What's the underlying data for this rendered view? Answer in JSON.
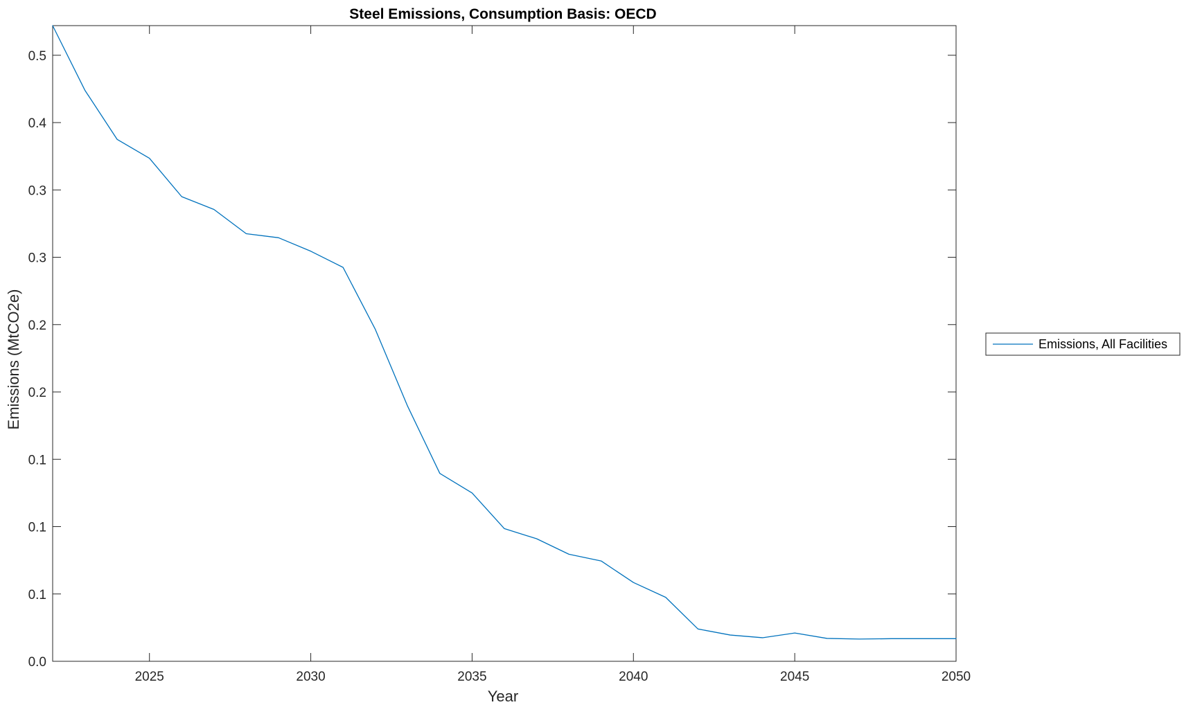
{
  "chart_data": {
    "type": "line",
    "title": "Steel Emissions, Consumption Basis: OECD",
    "xlabel": "Year",
    "ylabel": "Emissions (MtCO2e)",
    "xlim": [
      2022,
      2050
    ],
    "ylim": [
      0,
      0.472
    ],
    "grid": false,
    "legend_position": "outside-right",
    "x_ticks": [
      2025,
      2030,
      2035,
      2040,
      2045,
      2050
    ],
    "y_ticks": [
      {
        "value": 0.0,
        "label": "0.0"
      },
      {
        "value": 0.05,
        "label": "0.1"
      },
      {
        "value": 0.1,
        "label": "0.1"
      },
      {
        "value": 0.15,
        "label": "0.1"
      },
      {
        "value": 0.2,
        "label": "0.2"
      },
      {
        "value": 0.25,
        "label": "0.2"
      },
      {
        "value": 0.3,
        "label": "0.3"
      },
      {
        "value": 0.35,
        "label": "0.3"
      },
      {
        "value": 0.4,
        "label": "0.4"
      },
      {
        "value": 0.45,
        "label": "0.5"
      }
    ],
    "series": [
      {
        "name": "Emissions, All Facilities",
        "color": "#0072BD",
        "x": [
          2022,
          2023,
          2024,
          2025,
          2026,
          2027,
          2028,
          2029,
          2030,
          2031,
          2032,
          2033,
          2034,
          2035,
          2036,
          2037,
          2038,
          2039,
          2040,
          2041,
          2042,
          2043,
          2044,
          2045,
          2046,
          2047,
          2048,
          2049,
          2050
        ],
        "values": [
          0.472,
          0.424,
          0.3875,
          0.3735,
          0.345,
          0.3355,
          0.3175,
          0.3145,
          0.3045,
          0.2925,
          0.2465,
          0.1895,
          0.1395,
          0.125,
          0.0985,
          0.091,
          0.0795,
          0.0745,
          0.0585,
          0.0475,
          0.024,
          0.0195,
          0.0175,
          0.021,
          0.017,
          0.0165,
          0.0168,
          0.0168,
          0.0168
        ]
      }
    ]
  }
}
